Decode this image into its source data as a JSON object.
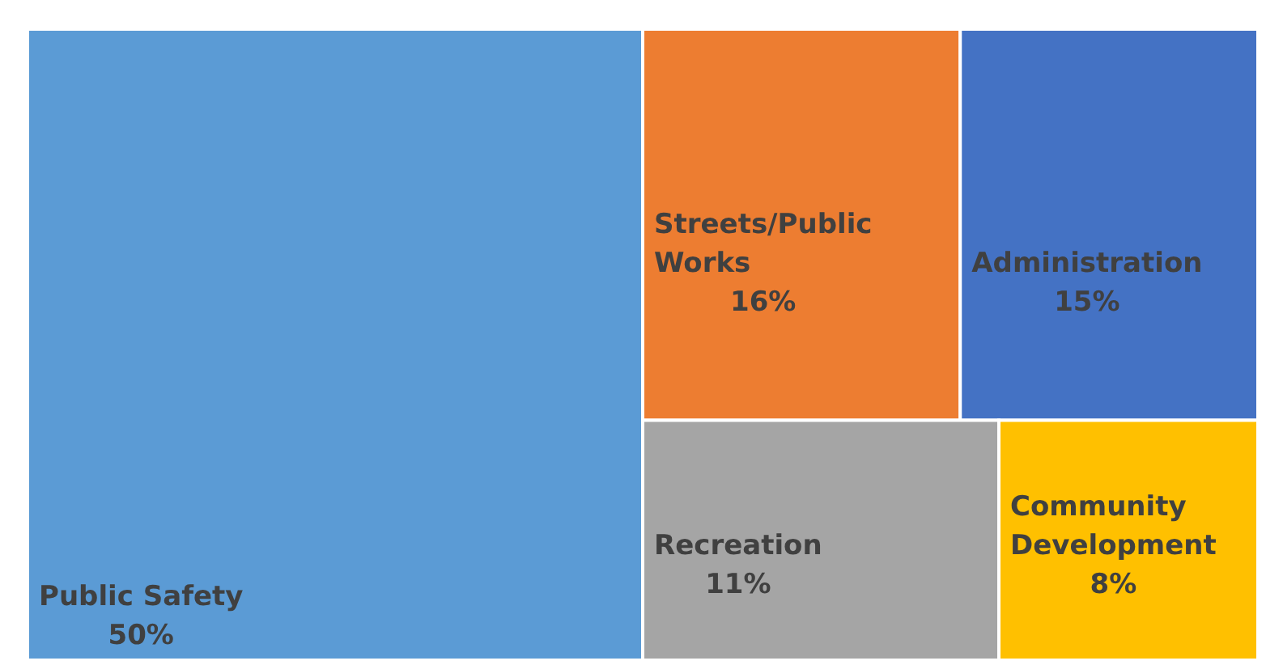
{
  "chart_data": {
    "type": "other",
    "categories": [
      "Public Safety",
      "Streets/Public Works",
      "Administration",
      "Recreation",
      "Community Development"
    ],
    "values": [
      50,
      16,
      15,
      11,
      8
    ],
    "value_labels": [
      "50%",
      "16%",
      "15%",
      "11%",
      "8%"
    ],
    "colors": [
      "#5b9bd5",
      "#ed7d31",
      "#4472c4",
      "#a5a5a5",
      "#ffc000"
    ]
  }
}
